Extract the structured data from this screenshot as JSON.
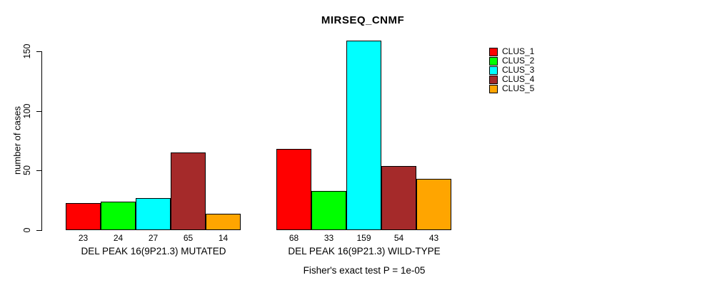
{
  "chart_data": {
    "type": "bar",
    "title": "MIRSEQ_CNMF",
    "ylabel": "number of cases",
    "yticks": [
      0,
      50,
      100,
      150
    ],
    "ylim": [
      0,
      160
    ],
    "grid": false,
    "legend_position": "right",
    "series": [
      "CLUS_1",
      "CLUS_2",
      "CLUS_3",
      "CLUS_4",
      "CLUS_5"
    ],
    "colors": [
      "#ff0000",
      "#00ff00",
      "#00ffff",
      "#a52a2a",
      "#ffa500"
    ],
    "groups": [
      {
        "label": "DEL PEAK 16(9P21.3) MUTATED",
        "values": [
          23,
          24,
          27,
          65,
          14
        ]
      },
      {
        "label": "DEL PEAK 16(9P21.3) WILD-TYPE",
        "values": [
          68,
          33,
          159,
          54,
          43
        ]
      }
    ],
    "footnote": "Fisher's exact test P = 1e-05"
  },
  "legend": {
    "items": [
      {
        "label": "CLUS_1",
        "color": "#ff0000"
      },
      {
        "label": "CLUS_2",
        "color": "#00ff00"
      },
      {
        "label": "CLUS_3",
        "color": "#00ffff"
      },
      {
        "label": "CLUS_4",
        "color": "#a52a2a"
      },
      {
        "label": "CLUS_5",
        "color": "#ffa500"
      }
    ]
  }
}
